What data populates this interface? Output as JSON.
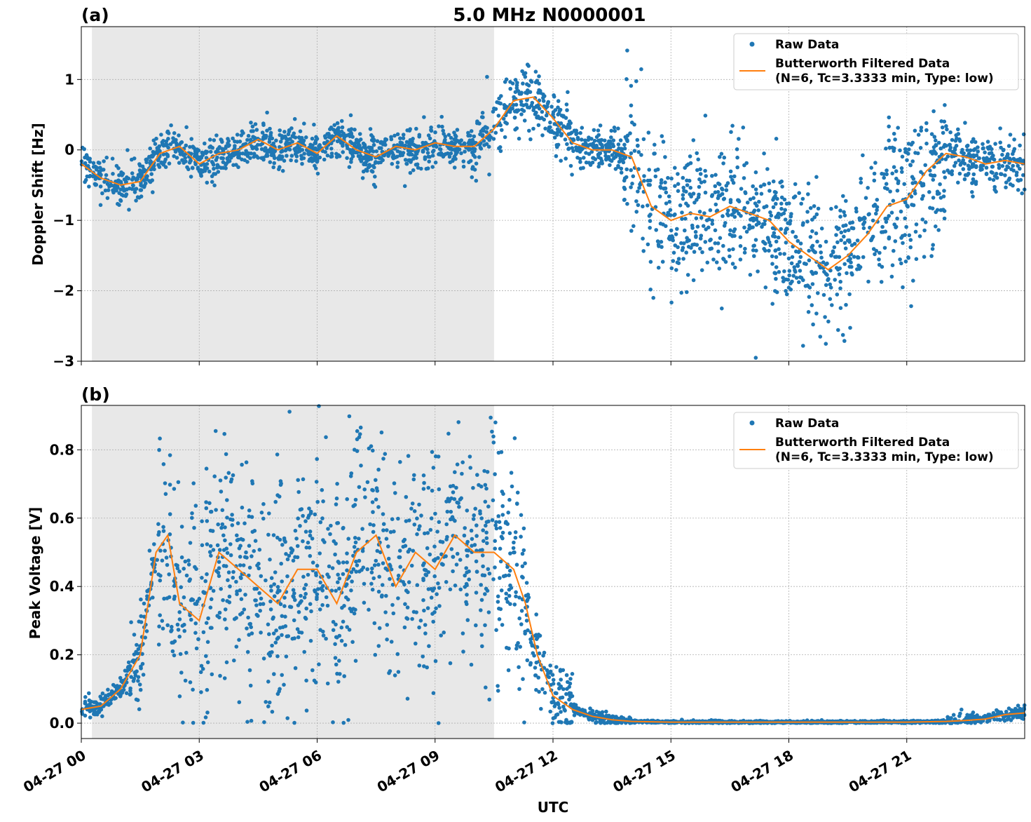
{
  "figure": {
    "title": "5.0 MHz N0000001",
    "xlabel": "UTC"
  },
  "chart_data": [
    {
      "type": "scatter",
      "panel_label": "(a)",
      "ylabel": "Doppler Shift [Hz]",
      "xlim": [
        0,
        24
      ],
      "ylim": [
        -3.0,
        1.75
      ],
      "yticks": [
        -3,
        -2,
        -1,
        0,
        1
      ],
      "ytick_labels": [
        "−3",
        "−2",
        "−1",
        "0",
        "1"
      ],
      "xticks": [
        0,
        3,
        6,
        9,
        12,
        15,
        18,
        21
      ],
      "shaded_region": [
        0.27,
        10.5
      ],
      "grid": true,
      "legend_position": "top-right",
      "legend": {
        "raw": "Raw Data",
        "filtered_line1": "Butterworth Filtered Data",
        "filtered_line2": "(N=6, Tc=3.3333 min, Type: low)"
      },
      "series": [
        {
          "name": "Butterworth Filtered Data",
          "kind": "line",
          "color": "#ff7f0e",
          "x": [
            0,
            0.5,
            1,
            1.5,
            2,
            2.5,
            3,
            3.5,
            4,
            4.5,
            5,
            5.5,
            6,
            6.5,
            7,
            7.5,
            8,
            8.5,
            9,
            9.5,
            10,
            10.5,
            11,
            11.5,
            12,
            12.5,
            13,
            13.5,
            14,
            14.5,
            15,
            15.5,
            16,
            16.5,
            17,
            17.5,
            18,
            18.5,
            19,
            19.5,
            20,
            20.5,
            21,
            21.5,
            22,
            22.5,
            23,
            23.5,
            24
          ],
          "y": [
            -0.2,
            -0.4,
            -0.5,
            -0.45,
            -0.05,
            0.05,
            -0.2,
            -0.05,
            0.0,
            0.15,
            0.0,
            0.1,
            -0.05,
            0.2,
            0.0,
            -0.1,
            0.05,
            0.0,
            0.1,
            0.05,
            0.05,
            0.3,
            0.7,
            0.75,
            0.45,
            0.1,
            0.0,
            0.0,
            -0.1,
            -0.8,
            -1.0,
            -0.9,
            -0.95,
            -0.8,
            -0.9,
            -1.0,
            -1.3,
            -1.5,
            -1.7,
            -1.5,
            -1.2,
            -0.8,
            -0.7,
            -0.3,
            -0.05,
            -0.1,
            -0.2,
            -0.15,
            -0.2
          ]
        }
      ]
    },
    {
      "type": "scatter",
      "panel_label": "(b)",
      "ylabel": "Peak Voltage [V]",
      "xlim": [
        0,
        24
      ],
      "ylim": [
        -0.045,
        0.93
      ],
      "yticks": [
        0.0,
        0.2,
        0.4,
        0.6,
        0.8
      ],
      "ytick_labels": [
        "0.0",
        "0.2",
        "0.4",
        "0.6",
        "0.8"
      ],
      "xticks": [
        0,
        3,
        6,
        9,
        12,
        15,
        18,
        21
      ],
      "xtick_labels": [
        "04-27 00",
        "04-27 03",
        "04-27 06",
        "04-27 09",
        "04-27 12",
        "04-27 15",
        "04-27 18",
        "04-27 21"
      ],
      "shaded_region": [
        0.27,
        10.5
      ],
      "grid": true,
      "legend_position": "top-right",
      "legend": {
        "raw": "Raw Data",
        "filtered_line1": "Butterworth Filtered Data",
        "filtered_line2": "(N=6, Tc=3.3333 min, Type: low)"
      },
      "series": [
        {
          "name": "Butterworth Filtered Data",
          "kind": "line",
          "color": "#ff7f0e",
          "x": [
            0,
            0.5,
            1,
            1.5,
            1.9,
            2.2,
            2.5,
            3,
            3.5,
            4,
            4.5,
            5,
            5.5,
            6,
            6.5,
            7,
            7.5,
            8,
            8.5,
            9,
            9.5,
            10,
            10.5,
            11,
            11.3,
            11.6,
            12,
            12.5,
            13,
            13.5,
            14,
            15,
            16,
            17,
            18,
            19,
            20,
            21,
            22,
            22.5,
            23,
            23.5,
            24
          ],
          "y": [
            0.04,
            0.05,
            0.1,
            0.2,
            0.5,
            0.55,
            0.35,
            0.3,
            0.5,
            0.45,
            0.4,
            0.35,
            0.45,
            0.45,
            0.35,
            0.5,
            0.55,
            0.4,
            0.5,
            0.45,
            0.55,
            0.5,
            0.5,
            0.45,
            0.35,
            0.2,
            0.08,
            0.04,
            0.02,
            0.01,
            0.005,
            0.003,
            0.003,
            0.003,
            0.003,
            0.003,
            0.003,
            0.003,
            0.005,
            0.008,
            0.012,
            0.025,
            0.03
          ]
        }
      ]
    }
  ],
  "raw_series_color": "#1f77b4"
}
